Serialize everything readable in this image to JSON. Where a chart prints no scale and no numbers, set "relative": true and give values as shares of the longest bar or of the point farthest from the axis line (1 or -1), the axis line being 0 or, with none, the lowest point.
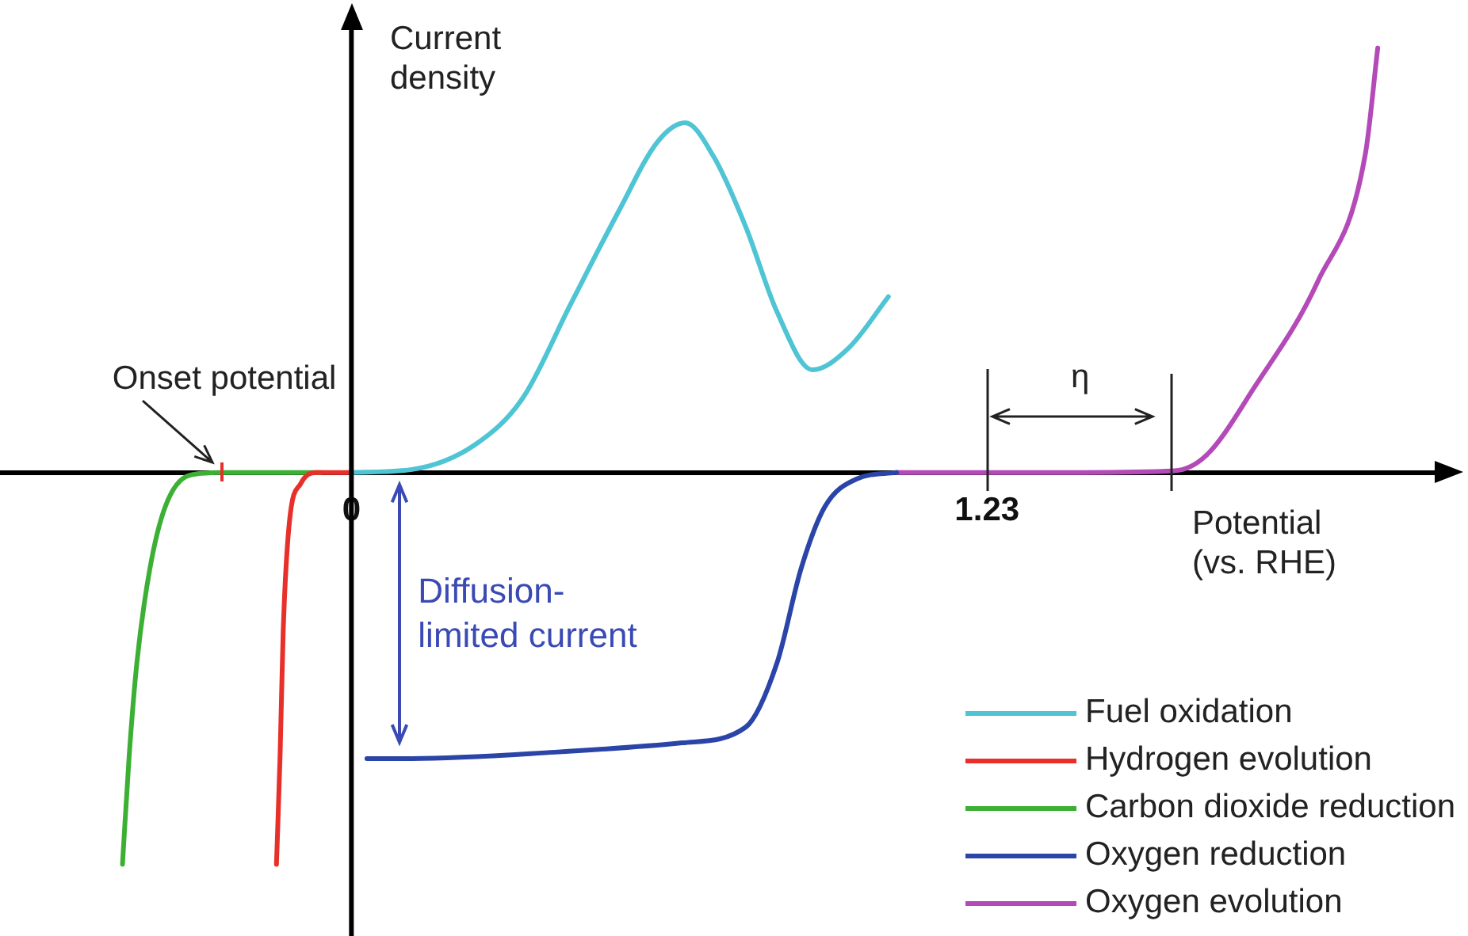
{
  "chart_data": {
    "type": "line",
    "xlabel": "Potential (vs. RHE)",
    "ylabel": "Current density",
    "relative": true,
    "xlim": [
      -0.68,
      2.13
    ],
    "xticks": [
      0,
      1.23
    ],
    "legend": "bottom right",
    "marker": "none",
    "line_style": "solid",
    "series": [
      {
        "name": "Fuel oxidation",
        "color": "#4ec4d4",
        "x": [
          0,
          0.117,
          0.24,
          0.332,
          0.424,
          0.517,
          0.593,
          0.646,
          0.701,
          0.763,
          0.824,
          0.892,
          0.962,
          1.039
        ],
        "values": [
          0,
          0.007,
          0.066,
          0.176,
          0.396,
          0.615,
          0.78,
          0.824,
          0.744,
          0.579,
          0.377,
          0.242,
          0.293,
          0.414
        ]
      },
      {
        "name": "Hydrogen evolution",
        "color": "#e8302a",
        "x": [
          0,
          -0.068,
          -0.098,
          -0.12,
          -0.132,
          -0.138,
          -0.145
        ],
        "values": [
          0,
          0,
          -0.026,
          -0.117,
          -0.374,
          -0.667,
          -0.923
        ]
      },
      {
        "name": "Carbon dioxide reduction",
        "color": "#3cb034",
        "x": [
          -0.06,
          -0.25,
          -0.314,
          -0.36,
          -0.39,
          -0.415,
          -0.43,
          -0.443
        ],
        "values": [
          0,
          0,
          -0.007,
          -0.08,
          -0.227,
          -0.447,
          -0.667,
          -0.923
        ]
      },
      {
        "name": "Oxygen reduction",
        "color": "#2a44a8",
        "x": [
          0.03,
          0.117,
          0.394,
          0.64,
          0.763,
          0.824,
          0.87,
          0.916,
          0.978,
          1.055
        ],
        "values": [
          -0.674,
          -0.674,
          -0.659,
          -0.637,
          -0.6,
          -0.447,
          -0.227,
          -0.081,
          -0.015,
          0
        ]
      },
      {
        "name": "Oxygen evolution",
        "color": "#b44ab8",
        "x": [
          1.055,
          1.415,
          1.593,
          1.654,
          1.747,
          1.87,
          1.962,
          1.986
        ],
        "values": [
          0,
          0,
          0.004,
          0.04,
          0.2,
          0.45,
          0.75,
          1.0
        ]
      }
    ],
    "annotations": [
      {
        "text": "Onset potential",
        "x": -0.25,
        "y": 0
      },
      {
        "text": "η",
        "x": 1.41,
        "y": 0
      },
      "Diffusion-limited current"
    ]
  }
}
